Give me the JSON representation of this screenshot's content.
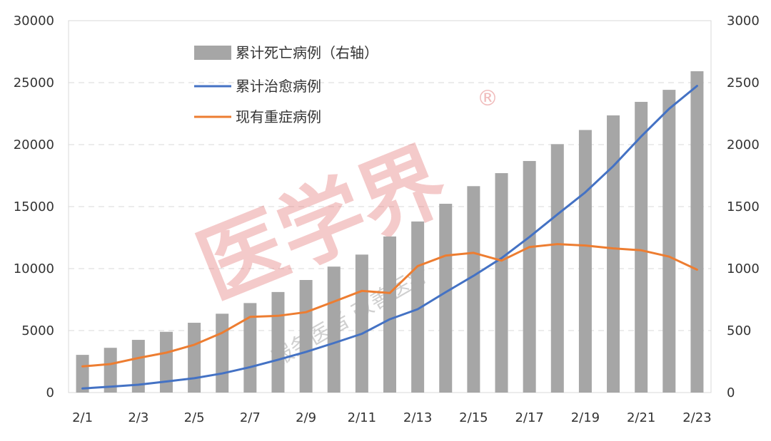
{
  "chart_data": {
    "type": "bar",
    "categories": [
      "2/1",
      "2/2",
      "2/3",
      "2/4",
      "2/5",
      "2/6",
      "2/7",
      "2/8",
      "2/9",
      "2/10",
      "2/11",
      "2/12",
      "2/13",
      "2/14",
      "2/15",
      "2/16",
      "2/17",
      "2/18",
      "2/19",
      "2/20",
      "2/21",
      "2/22",
      "2/23"
    ],
    "x_tick_labels": [
      "2/1",
      "2/3",
      "2/5",
      "2/7",
      "2/9",
      "2/11",
      "2/13",
      "2/15",
      "2/17",
      "2/19",
      "2/21",
      "2/23"
    ],
    "left_axis": {
      "ticks": [
        "0",
        "5000",
        "10000",
        "15000",
        "20000",
        "25000",
        "30000"
      ],
      "ylim": [
        0,
        30000
      ]
    },
    "right_axis": {
      "ticks": [
        "0",
        "500",
        "1000",
        "1500",
        "2000",
        "2500",
        "3000"
      ],
      "ylim": [
        0,
        3000
      ]
    },
    "grid": true,
    "legend_position": "top-left",
    "series": [
      {
        "name": "累计死亡病例（右轴）",
        "type": "bar",
        "axis": "right",
        "color": "#a6a6a6",
        "values": [
          304,
          361,
          425,
          490,
          563,
          636,
          722,
          811,
          908,
          1016,
          1113,
          1259,
          1380,
          1523,
          1665,
          1770,
          1868,
          2004,
          2118,
          2236,
          2345,
          2442,
          2592
        ]
      },
      {
        "name": "累计治愈病例",
        "type": "line",
        "axis": "left",
        "color": "#4472c4",
        "values": [
          328,
          475,
          632,
          892,
          1153,
          1540,
          2050,
          2649,
          3281,
          3996,
          4740,
          5911,
          6723,
          8096,
          9419,
          10844,
          12552,
          14376,
          16155,
          18264,
          20659,
          22888,
          24734
        ]
      },
      {
        "name": "现有重症病例",
        "type": "line",
        "axis": "left",
        "color": "#ed7d31",
        "values": [
          2110,
          2296,
          2788,
          3219,
          3859,
          4821,
          6101,
          6188,
          6484,
          7333,
          8204,
          8030,
          10204,
          11053,
          11272,
          10644,
          11741,
          11977,
          11864,
          11633,
          11477,
          10968,
          9915
        ]
      }
    ]
  },
  "watermark": {
    "main": "医学界",
    "registered": "®",
    "sub": "服务医者 改善医疗"
  }
}
